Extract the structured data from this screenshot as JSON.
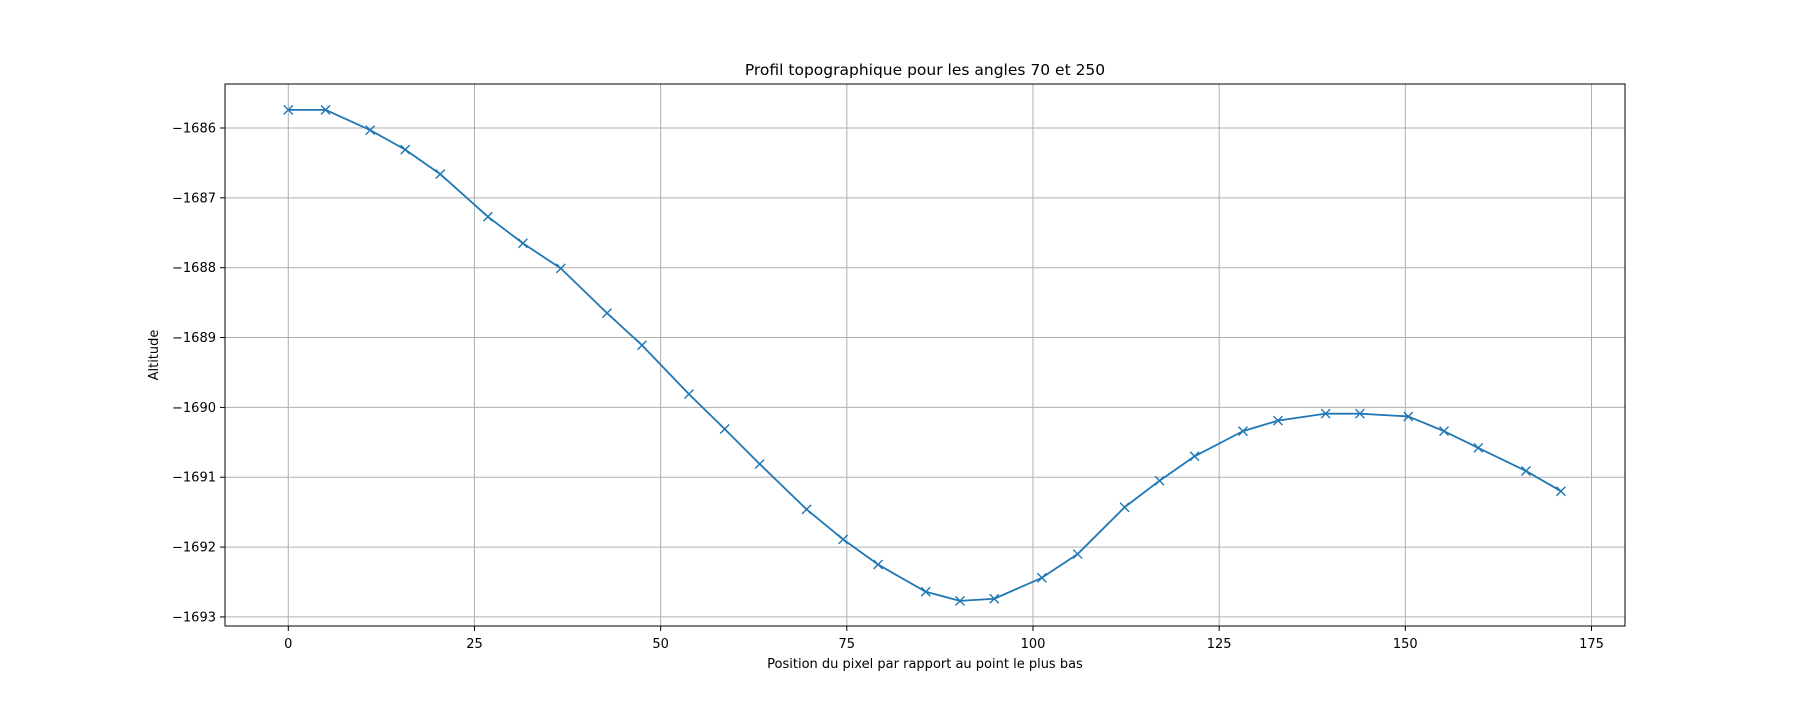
{
  "chart_data": {
    "type": "line",
    "title": "Profil topographique pour les angles 70 et 250",
    "xlabel": "Position du pixel par rapport au point le plus bas",
    "ylabel": "Altitude",
    "xlim": [
      -8.5,
      179.5
    ],
    "ylim": [
      -1693.13,
      -1685.37
    ],
    "xticks": [
      0,
      25,
      50,
      75,
      100,
      125,
      150,
      175
    ],
    "xtick_labels": [
      "0",
      "25",
      "50",
      "75",
      "100",
      "125",
      "150",
      "175"
    ],
    "yticks": [
      -1686,
      -1687,
      -1688,
      -1689,
      -1690,
      -1691,
      -1692,
      -1693
    ],
    "ytick_labels": [
      "−1686",
      "−1687",
      "−1688",
      "−1689",
      "−1690",
      "−1691",
      "−1692",
      "−1693"
    ],
    "grid": true,
    "marker": "x",
    "series": [
      {
        "color": "#1f77b4",
        "x": [
          0,
          5,
          11,
          15.7,
          20.4,
          26.8,
          31.5,
          36.6,
          42.8,
          47.5,
          53.8,
          58.6,
          63.3,
          69.6,
          74.5,
          79.2,
          85.6,
          90.2,
          94.8,
          101.2,
          106,
          112.3,
          117,
          121.7,
          128.2,
          132.9,
          139.3,
          143.9,
          150.4,
          155.2,
          159.8,
          166.2,
          170.9
        ],
        "y": [
          -1685.74,
          -1685.74,
          -1686.03,
          -1686.31,
          -1686.66,
          -1687.27,
          -1687.65,
          -1688.01,
          -1688.65,
          -1689.11,
          -1689.81,
          -1690.31,
          -1690.81,
          -1691.46,
          -1691.89,
          -1692.25,
          -1692.64,
          -1692.77,
          -1692.74,
          -1692.44,
          -1692.1,
          -1691.43,
          -1691.05,
          -1690.7,
          -1690.34,
          -1690.19,
          -1690.09,
          -1690.09,
          -1690.13,
          -1690.34,
          -1690.58,
          -1690.91,
          -1691.2
        ]
      }
    ]
  }
}
